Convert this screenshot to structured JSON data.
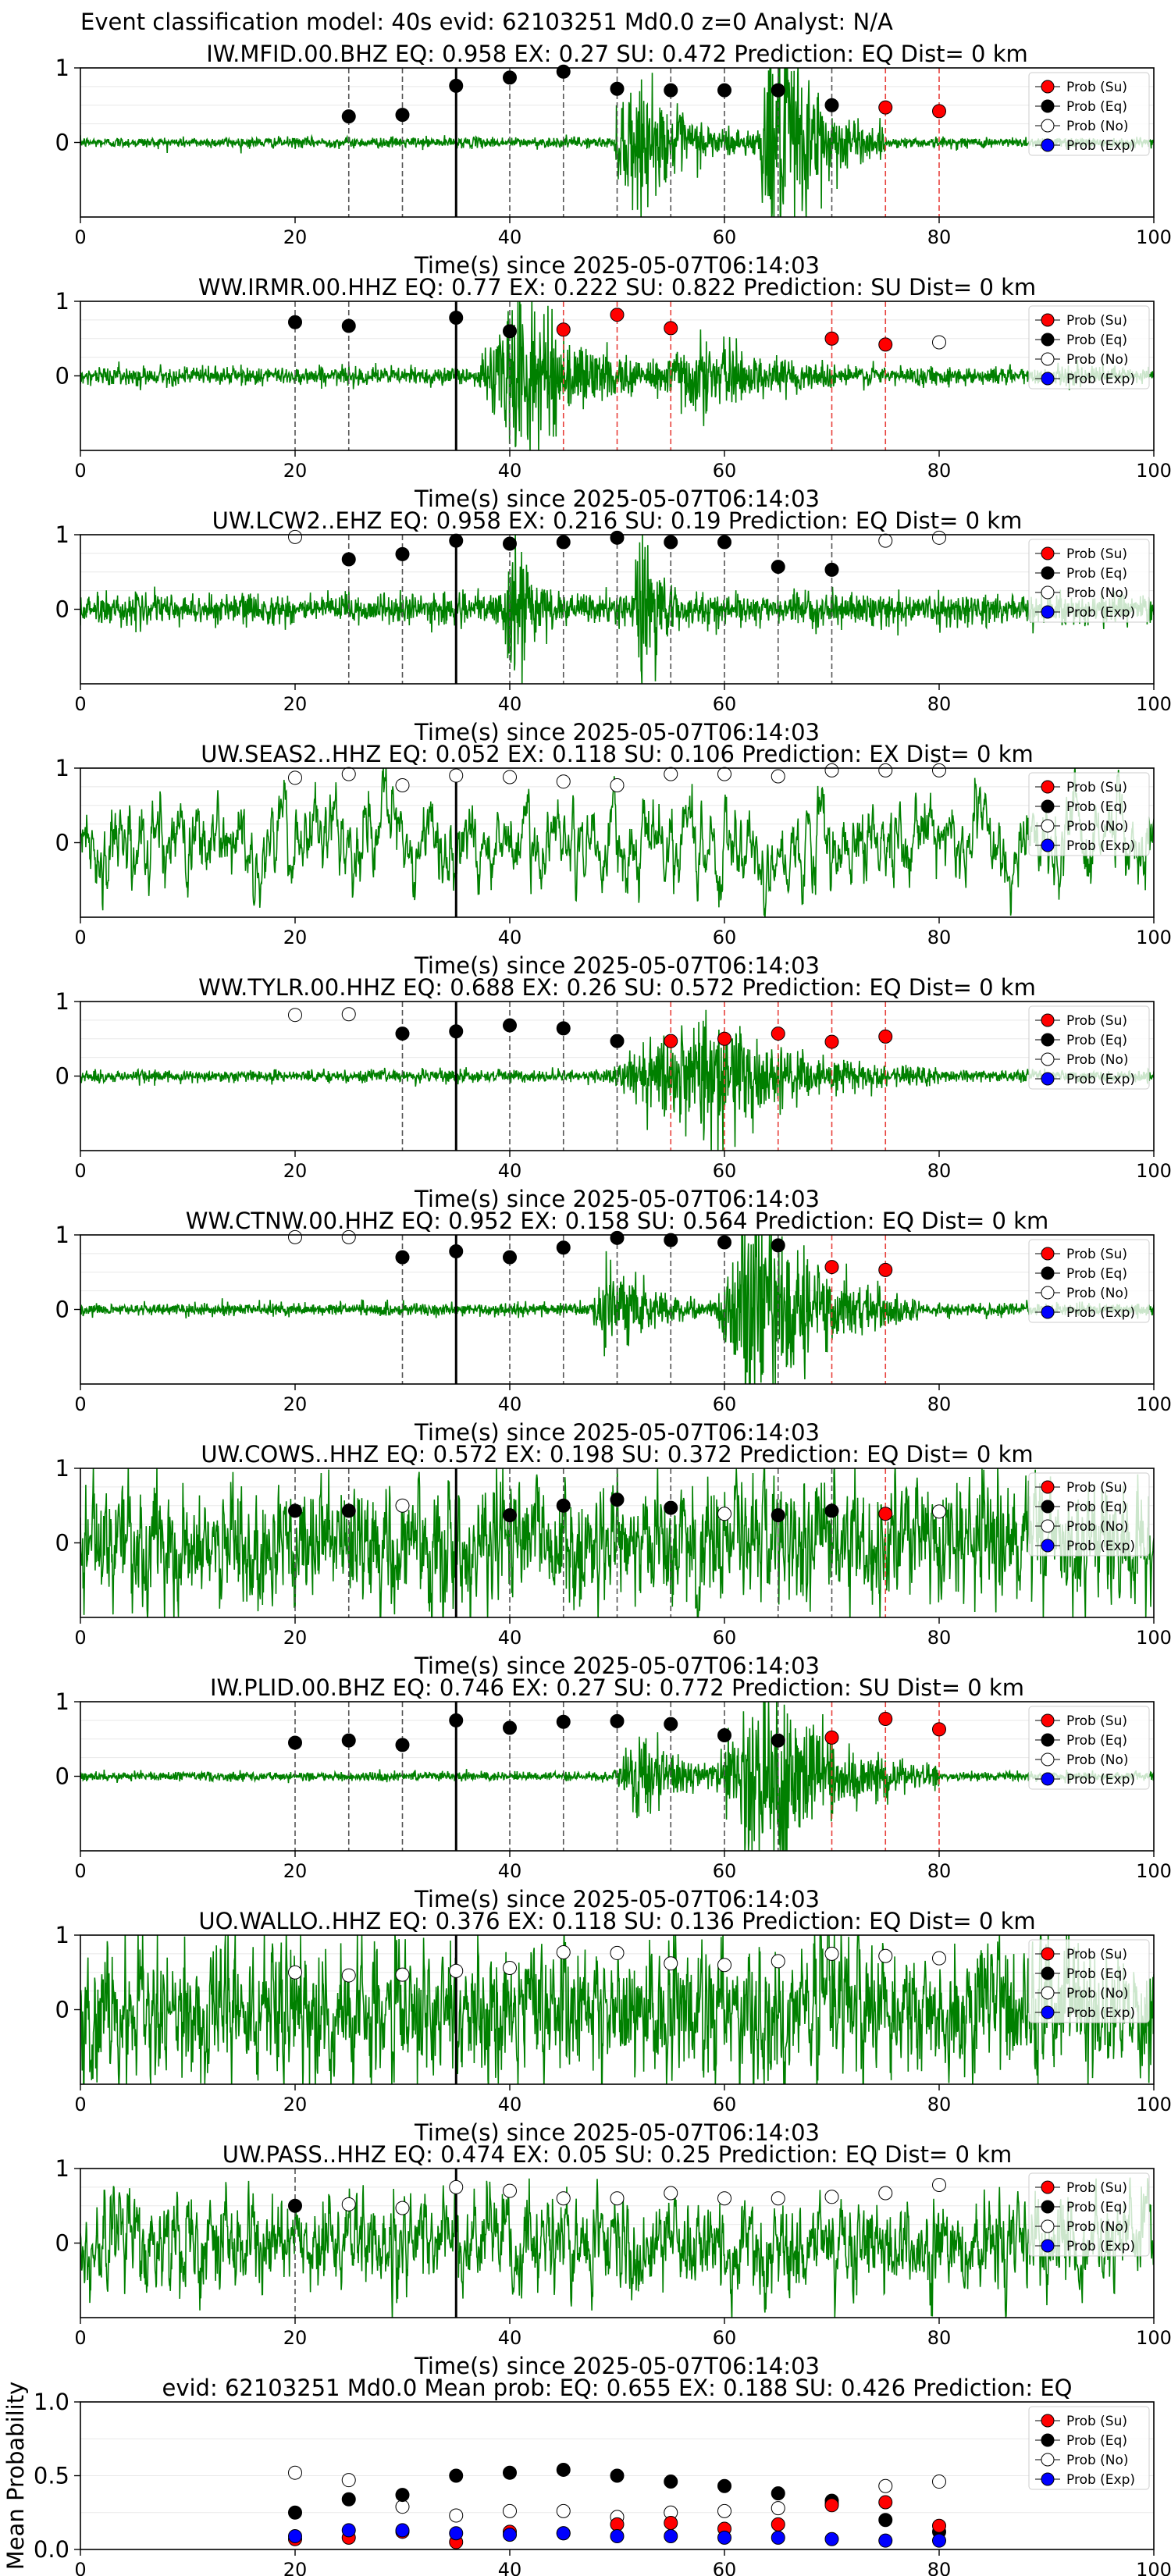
{
  "suptitle": "Event classification model: 40s evid: 62103251 Md0.0 z=0 Analyst: N/A",
  "xlabel": "Time(s) since 2025-05-07T06:14:03",
  "legend": [
    "Prob (Su)",
    "Prob (Eq)",
    "Prob (No)",
    "Prob (Exp)"
  ],
  "colors": {
    "waveform": "#008000",
    "su": "#ff0000",
    "eq": "#000000",
    "no": "#ffffff",
    "exp": "#0000ff",
    "su_line": "#e8413c",
    "eq_line": "#555555",
    "arrival": "#000000"
  },
  "chart_data": [
    {
      "type": "scatter",
      "station": "IW.MFID.00.BHZ",
      "title": "IW.MFID.00.BHZ   EQ: 0.958  EX: 0.27  SU: 0.472   Prediction: EQ    Dist= 0 km",
      "xlim": [
        0,
        100
      ],
      "ylim": [
        -1,
        1
      ],
      "yticks": [
        0,
        1
      ],
      "xticks": [
        0,
        20,
        40,
        60,
        80,
        100
      ],
      "arrival": 35,
      "waveform": {
        "noise": 0.035,
        "bursts": [
          {
            "start": 49.5,
            "peak": 51,
            "end": 66,
            "amp": 0.45
          },
          {
            "start": 63,
            "peak": 65,
            "end": 75,
            "amp": 1.05
          }
        ],
        "smooth": 1
      },
      "points": [
        [
          25,
          0.35,
          "eq"
        ],
        [
          30,
          0.37,
          "eq"
        ],
        [
          35,
          0.76,
          "eq"
        ],
        [
          40,
          0.87,
          "eq"
        ],
        [
          45,
          0.95,
          "eq"
        ],
        [
          50,
          0.72,
          "eq"
        ],
        [
          55,
          0.7,
          "eq"
        ],
        [
          60,
          0.7,
          "eq"
        ],
        [
          65,
          0.7,
          "eq"
        ],
        [
          70,
          0.5,
          "eq"
        ],
        [
          75,
          0.47,
          "su"
        ],
        [
          80,
          0.42,
          "su"
        ]
      ]
    },
    {
      "type": "scatter",
      "station": "WW.IRMR.00.HHZ",
      "title": "WW.IRMR.00.HHZ   EQ: 0.77  EX: 0.222  SU: 0.822   Prediction: SU    Dist= 0 km",
      "xlim": [
        0,
        100
      ],
      "ylim": [
        -1,
        1
      ],
      "yticks": [
        0,
        1
      ],
      "xticks": [
        0,
        20,
        40,
        60,
        80,
        100
      ],
      "arrival": 35,
      "waveform": {
        "noise": 0.06,
        "bursts": [
          {
            "start": 37,
            "peak": 41,
            "end": 55,
            "amp": 0.55
          },
          {
            "start": 52,
            "peak": 58,
            "end": 75,
            "amp": 0.2
          }
        ],
        "smooth": 1
      },
      "points": [
        [
          20,
          0.72,
          "eq"
        ],
        [
          25,
          0.67,
          "eq"
        ],
        [
          35,
          0.78,
          "eq"
        ],
        [
          40,
          0.6,
          "eq"
        ],
        [
          45,
          0.62,
          "su"
        ],
        [
          50,
          0.82,
          "su"
        ],
        [
          55,
          0.64,
          "su"
        ],
        [
          70,
          0.5,
          "su"
        ],
        [
          75,
          0.42,
          "su"
        ],
        [
          80,
          0.45,
          "no"
        ]
      ]
    },
    {
      "type": "scatter",
      "station": "UW.LCW2..EHZ",
      "title": "UW.LCW2..EHZ   EQ: 0.958  EX: 0.216  SU: 0.19   Prediction: EQ    Dist= 0 km",
      "xlim": [
        0,
        100
      ],
      "ylim": [
        -1,
        1
      ],
      "yticks": [
        0,
        1
      ],
      "xticks": [
        0,
        20,
        40,
        60,
        80,
        100
      ],
      "arrival": 35,
      "waveform": {
        "noise": 0.1,
        "bursts": [
          {
            "start": 39.5,
            "peak": 40.3,
            "end": 44,
            "amp": 0.7
          },
          {
            "start": 51.5,
            "peak": 52.3,
            "end": 56,
            "amp": 0.75
          }
        ],
        "smooth": 1
      },
      "points": [
        [
          20,
          0.97,
          "no"
        ],
        [
          25,
          0.67,
          "eq"
        ],
        [
          30,
          0.74,
          "eq"
        ],
        [
          35,
          0.92,
          "eq"
        ],
        [
          40,
          0.88,
          "eq"
        ],
        [
          45,
          0.9,
          "eq"
        ],
        [
          50,
          0.96,
          "eq"
        ],
        [
          55,
          0.9,
          "eq"
        ],
        [
          60,
          0.9,
          "eq"
        ],
        [
          65,
          0.57,
          "eq"
        ],
        [
          70,
          0.53,
          "eq"
        ],
        [
          75,
          0.92,
          "no"
        ],
        [
          80,
          0.96,
          "no"
        ]
      ]
    },
    {
      "type": "scatter",
      "station": "UW.SEAS2..HHZ",
      "title": "UW.SEAS2..HHZ   EQ: 0.052  EX: 0.118  SU: 0.106   Prediction: EX    Dist= 0 km",
      "xlim": [
        0,
        100
      ],
      "ylim": [
        -1,
        1
      ],
      "yticks": [
        0,
        1
      ],
      "xticks": [
        0,
        20,
        40,
        60,
        80,
        100
      ],
      "arrival": 35,
      "waveform": {
        "noise": 0.42,
        "bursts": [],
        "smooth": 6
      },
      "points": [
        [
          20,
          0.87,
          "no"
        ],
        [
          25,
          0.92,
          "no"
        ],
        [
          30,
          0.77,
          "no"
        ],
        [
          35,
          0.9,
          "no"
        ],
        [
          40,
          0.88,
          "no"
        ],
        [
          45,
          0.82,
          "no"
        ],
        [
          50,
          0.77,
          "no"
        ],
        [
          55,
          0.92,
          "no"
        ],
        [
          60,
          0.92,
          "no"
        ],
        [
          65,
          0.89,
          "no"
        ],
        [
          70,
          0.97,
          "no"
        ],
        [
          75,
          0.97,
          "no"
        ],
        [
          80,
          0.97,
          "no"
        ]
      ]
    },
    {
      "type": "scatter",
      "station": "WW.TYLR.00.HHZ",
      "title": "WW.TYLR.00.HHZ   EQ: 0.688  EX: 0.26  SU: 0.572   Prediction: EQ    Dist= 0 km",
      "xlim": [
        0,
        100
      ],
      "ylim": [
        -1,
        1
      ],
      "yticks": [
        0,
        1
      ],
      "xticks": [
        0,
        20,
        40,
        60,
        80,
        100
      ],
      "arrival": 35,
      "waveform": {
        "noise": 0.04,
        "bursts": [
          {
            "start": 49,
            "peak": 58,
            "end": 80,
            "amp": 0.45
          }
        ],
        "smooth": 1
      },
      "points": [
        [
          20,
          0.82,
          "no"
        ],
        [
          25,
          0.83,
          "no"
        ],
        [
          30,
          0.57,
          "eq"
        ],
        [
          35,
          0.6,
          "eq"
        ],
        [
          40,
          0.68,
          "eq"
        ],
        [
          45,
          0.64,
          "eq"
        ],
        [
          50,
          0.47,
          "eq"
        ],
        [
          55,
          0.47,
          "su"
        ],
        [
          60,
          0.5,
          "su"
        ],
        [
          65,
          0.57,
          "su"
        ],
        [
          70,
          0.46,
          "su"
        ],
        [
          75,
          0.53,
          "su"
        ]
      ]
    },
    {
      "type": "scatter",
      "station": "WW.CTNW.00.HHZ",
      "title": "WW.CTNW.00.HHZ   EQ: 0.952  EX: 0.158  SU: 0.564   Prediction: EQ    Dist= 0 km",
      "xlim": [
        0,
        100
      ],
      "ylim": [
        -1,
        1
      ],
      "yticks": [
        0,
        1
      ],
      "xticks": [
        0,
        20,
        40,
        60,
        80,
        100
      ],
      "arrival": 35,
      "waveform": {
        "noise": 0.04,
        "bursts": [
          {
            "start": 47.5,
            "peak": 49,
            "end": 60,
            "amp": 0.3
          },
          {
            "start": 59,
            "peak": 63,
            "end": 78,
            "amp": 0.8
          }
        ],
        "smooth": 1
      },
      "points": [
        [
          20,
          0.97,
          "no"
        ],
        [
          25,
          0.97,
          "no"
        ],
        [
          30,
          0.7,
          "eq"
        ],
        [
          35,
          0.78,
          "eq"
        ],
        [
          40,
          0.7,
          "eq"
        ],
        [
          45,
          0.83,
          "eq"
        ],
        [
          50,
          0.96,
          "eq"
        ],
        [
          55,
          0.93,
          "eq"
        ],
        [
          60,
          0.9,
          "eq"
        ],
        [
          65,
          0.86,
          "eq"
        ],
        [
          70,
          0.57,
          "su"
        ],
        [
          75,
          0.53,
          "su"
        ]
      ]
    },
    {
      "type": "scatter",
      "station": "UW.COWS..HHZ",
      "title": "UW.COWS..HHZ   EQ: 0.572  EX: 0.198  SU: 0.372   Prediction: EQ    Dist= 0 km",
      "xlim": [
        0,
        100
      ],
      "ylim": [
        -1,
        1
      ],
      "yticks": [
        0,
        1
      ],
      "xticks": [
        0,
        20,
        40,
        60,
        80,
        100
      ],
      "arrival": 35,
      "waveform": {
        "noise": 0.5,
        "bursts": [],
        "smooth": 2
      },
      "points": [
        [
          20,
          0.43,
          "eq"
        ],
        [
          25,
          0.43,
          "eq"
        ],
        [
          30,
          0.5,
          "no"
        ],
        [
          40,
          0.37,
          "eq"
        ],
        [
          45,
          0.5,
          "eq"
        ],
        [
          50,
          0.58,
          "eq"
        ],
        [
          55,
          0.47,
          "eq"
        ],
        [
          60,
          0.39,
          "no"
        ],
        [
          65,
          0.37,
          "eq"
        ],
        [
          70,
          0.43,
          "eq"
        ],
        [
          75,
          0.39,
          "su"
        ],
        [
          80,
          0.42,
          "no"
        ]
      ]
    },
    {
      "type": "scatter",
      "station": "IW.PLID.00.BHZ",
      "title": "IW.PLID.00.BHZ   EQ: 0.746  EX: 0.27  SU: 0.772   Prediction: SU    Dist= 0 km",
      "xlim": [
        0,
        100
      ],
      "ylim": [
        -1,
        1
      ],
      "yticks": [
        0,
        1
      ],
      "xticks": [
        0,
        20,
        40,
        60,
        80,
        100
      ],
      "arrival": 35,
      "waveform": {
        "noise": 0.03,
        "bursts": [
          {
            "start": 49.5,
            "peak": 52,
            "end": 62,
            "amp": 0.3
          },
          {
            "start": 59,
            "peak": 64,
            "end": 80,
            "amp": 0.75
          }
        ],
        "smooth": 1
      },
      "points": [
        [
          20,
          0.45,
          "eq"
        ],
        [
          25,
          0.48,
          "eq"
        ],
        [
          30,
          0.42,
          "eq"
        ],
        [
          35,
          0.75,
          "eq"
        ],
        [
          40,
          0.65,
          "eq"
        ],
        [
          45,
          0.73,
          "eq"
        ],
        [
          50,
          0.74,
          "eq"
        ],
        [
          55,
          0.7,
          "eq"
        ],
        [
          60,
          0.55,
          "eq"
        ],
        [
          65,
          0.48,
          "eq"
        ],
        [
          70,
          0.52,
          "su"
        ],
        [
          75,
          0.77,
          "su"
        ],
        [
          80,
          0.63,
          "su"
        ]
      ]
    },
    {
      "type": "scatter",
      "station": "UO.WALLO..HHZ",
      "title": "UO.WALLO..HHZ   EQ: 0.376  EX: 0.118  SU: 0.136   Prediction: EQ    Dist= 0 km",
      "xlim": [
        0,
        100
      ],
      "ylim": [
        -1,
        1
      ],
      "yticks": [
        0,
        1
      ],
      "xticks": [
        0,
        20,
        40,
        60,
        80,
        100
      ],
      "arrival": 35,
      "waveform": {
        "noise": 0.55,
        "bursts": [],
        "smooth": 2
      },
      "points": [
        [
          20,
          0.5,
          "no"
        ],
        [
          25,
          0.46,
          "no"
        ],
        [
          30,
          0.47,
          "no"
        ],
        [
          35,
          0.52,
          "no"
        ],
        [
          40,
          0.56,
          "no"
        ],
        [
          45,
          0.77,
          "no"
        ],
        [
          50,
          0.76,
          "no"
        ],
        [
          55,
          0.62,
          "no"
        ],
        [
          60,
          0.6,
          "no"
        ],
        [
          65,
          0.65,
          "no"
        ],
        [
          70,
          0.75,
          "no"
        ],
        [
          75,
          0.72,
          "no"
        ],
        [
          80,
          0.69,
          "no"
        ]
      ]
    },
    {
      "type": "scatter",
      "station": "UW.PASS..HHZ",
      "title": "UW.PASS..HHZ   EQ: 0.474  EX: 0.05  SU: 0.25   Prediction: EQ    Dist= 0 km",
      "xlim": [
        0,
        100
      ],
      "ylim": [
        -1,
        1
      ],
      "yticks": [
        0,
        1
      ],
      "xticks": [
        0,
        20,
        40,
        60,
        80,
        100
      ],
      "arrival": 35,
      "waveform": {
        "noise": 0.42,
        "bursts": [],
        "smooth": 3
      },
      "points": [
        [
          20,
          0.5,
          "eq"
        ],
        [
          25,
          0.52,
          "no"
        ],
        [
          30,
          0.47,
          "no"
        ],
        [
          35,
          0.75,
          "no"
        ],
        [
          40,
          0.7,
          "no"
        ],
        [
          45,
          0.6,
          "no"
        ],
        [
          50,
          0.6,
          "no"
        ],
        [
          55,
          0.67,
          "no"
        ],
        [
          60,
          0.6,
          "no"
        ],
        [
          65,
          0.6,
          "no"
        ],
        [
          70,
          0.62,
          "no"
        ],
        [
          75,
          0.67,
          "no"
        ],
        [
          80,
          0.78,
          "no"
        ]
      ]
    },
    {
      "type": "scatter",
      "station": "mean",
      "title": "evid: 62103251  Md0.0   Mean prob:   EQ: 0.655  EX: 0.188  SU: 0.426   Prediction: EQ",
      "ylabel": "Mean Probability",
      "xlim": [
        0,
        100
      ],
      "ylim": [
        0,
        1
      ],
      "yticks": [
        0.0,
        0.5,
        1.0
      ],
      "yticklabels": [
        "0.0",
        "0.5",
        "1.0"
      ],
      "xticks": [
        0,
        20,
        40,
        60,
        80,
        100
      ],
      "series": [
        {
          "name": "Prob (Su)",
          "kind": "su",
          "x": [
            20,
            25,
            30,
            35,
            40,
            45,
            50,
            55,
            60,
            65,
            70,
            75,
            80
          ],
          "y": [
            0.07,
            0.08,
            0.12,
            0.05,
            0.12,
            0.11,
            0.17,
            0.18,
            0.14,
            0.17,
            0.3,
            0.32,
            0.16
          ]
        },
        {
          "name": "Prob (Eq)",
          "kind": "eq",
          "x": [
            20,
            25,
            30,
            35,
            40,
            45,
            50,
            55,
            60,
            65,
            70,
            75,
            80
          ],
          "y": [
            0.25,
            0.34,
            0.37,
            0.5,
            0.52,
            0.54,
            0.5,
            0.46,
            0.43,
            0.38,
            0.33,
            0.2,
            0.12
          ]
        },
        {
          "name": "Prob (No)",
          "kind": "no",
          "x": [
            20,
            25,
            30,
            35,
            40,
            45,
            50,
            55,
            60,
            65,
            70,
            75,
            80
          ],
          "y": [
            0.52,
            0.47,
            0.29,
            0.23,
            0.26,
            0.26,
            0.22,
            0.25,
            0.26,
            0.28,
            0.31,
            0.43,
            0.46
          ]
        },
        {
          "name": "Prob (Exp)",
          "kind": "exp",
          "x": [
            20,
            25,
            30,
            35,
            40,
            45,
            50,
            55,
            60,
            65,
            70,
            75,
            80
          ],
          "y": [
            0.09,
            0.13,
            0.13,
            0.11,
            0.1,
            0.11,
            0.09,
            0.09,
            0.08,
            0.08,
            0.07,
            0.06,
            0.06
          ]
        }
      ]
    }
  ]
}
